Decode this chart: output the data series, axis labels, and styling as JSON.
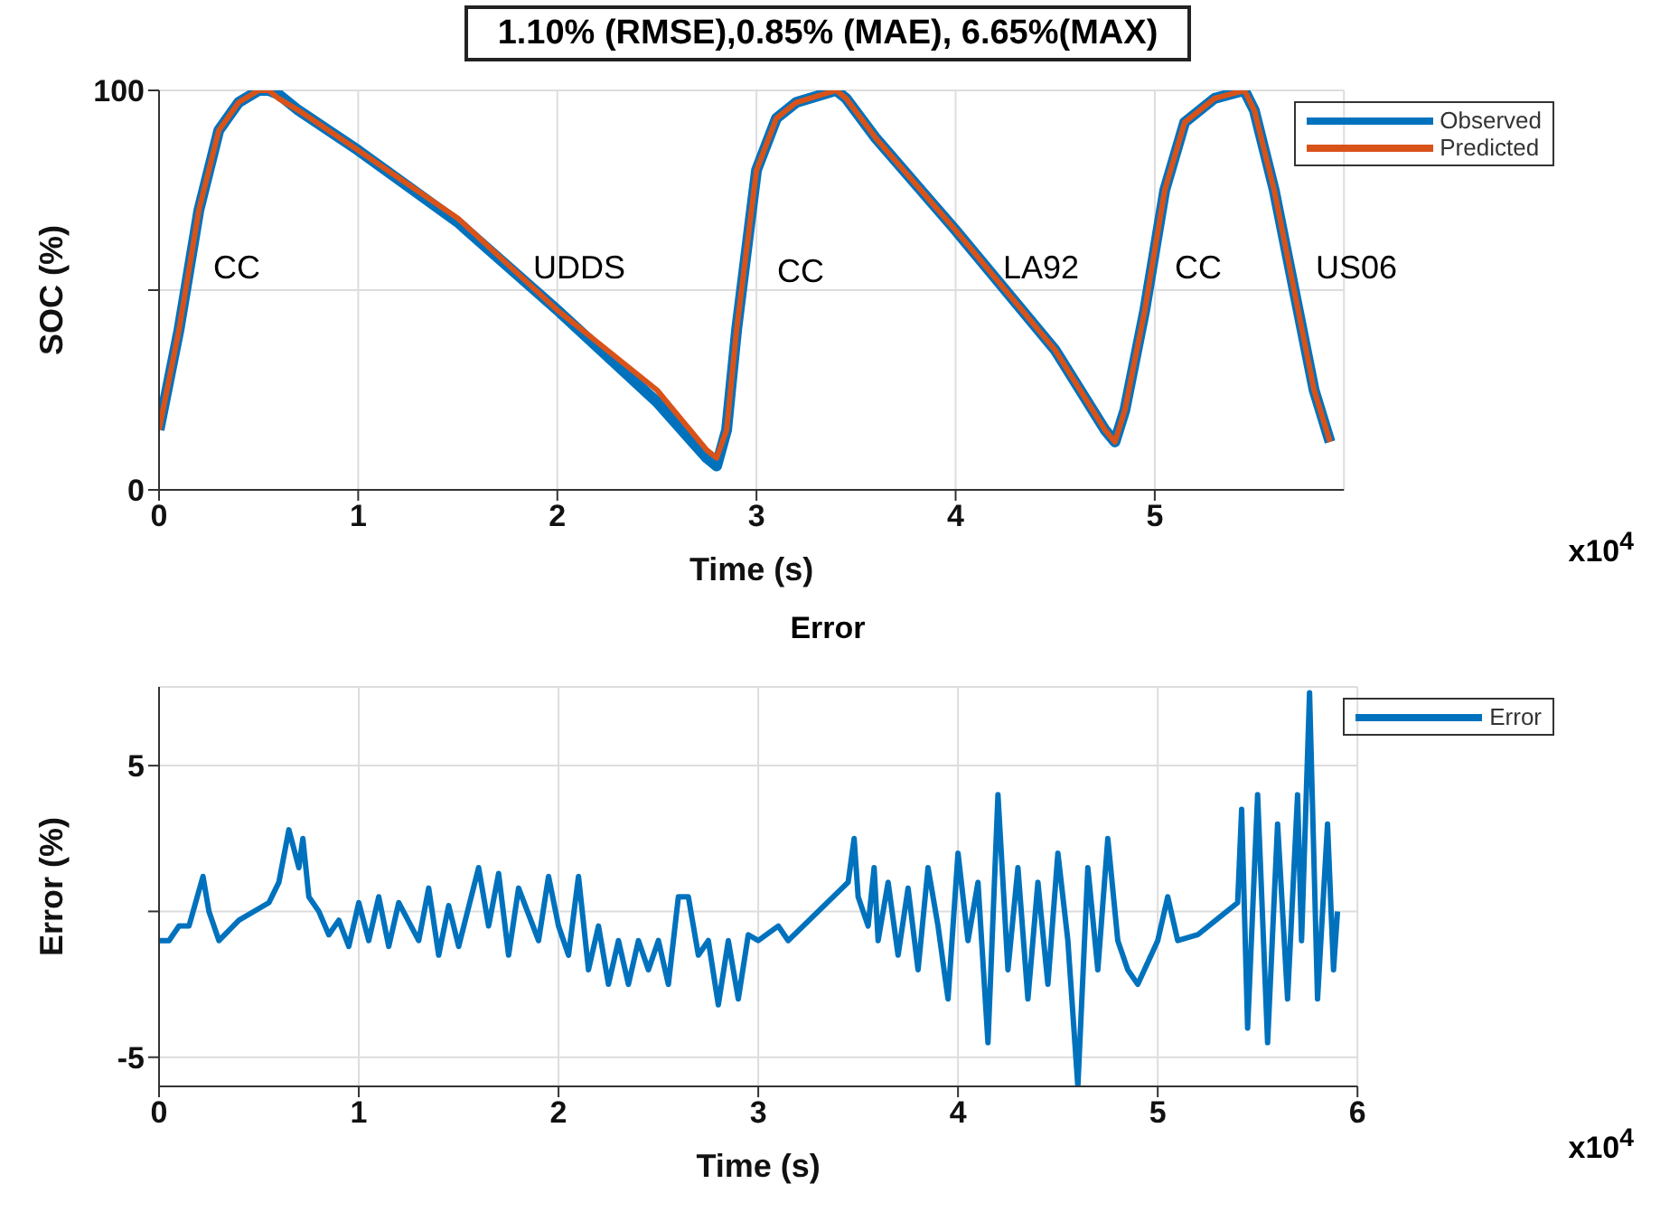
{
  "chart_data": [
    {
      "type": "line",
      "title": "1.10% (RMSE),0.85% (MAE), 6.65%(MAX)",
      "xlabel": "Time (s)",
      "ylabel": "SOC (%)",
      "xlim": [
        0,
        5.95
      ],
      "xticks": [
        0,
        1,
        2,
        3,
        4,
        5
      ],
      "ylim": [
        0,
        100
      ],
      "yticks": [
        0,
        {
          "value": 50,
          "label": null
        },
        100
      ],
      "grid": true,
      "legend": "top right",
      "line_style": "solid",
      "marker": "none",
      "annotations": [
        "CC",
        "UDDS",
        "CC",
        "LA92",
        "CC",
        "US06",
        "x10$^{4}$"
      ],
      "series": [
        {
          "name": "Observed",
          "color": "#0072bd",
          "x": [
            0,
            0.1,
            0.2,
            0.3,
            0.4,
            0.5,
            0.55,
            0.6,
            0.7,
            1.0,
            1.5,
            2.0,
            2.5,
            2.75,
            2.8,
            2.85,
            2.9,
            3.0,
            3.1,
            3.2,
            3.4,
            3.45,
            3.6,
            4.0,
            4.5,
            4.75,
            4.8,
            4.85,
            4.95,
            5.05,
            5.15,
            5.3,
            5.45,
            5.5,
            5.6,
            5.7,
            5.8,
            5.88
          ],
          "values": [
            15,
            40,
            70,
            90,
            97,
            100,
            100,
            99,
            95,
            85,
            67,
            45,
            22,
            8,
            6,
            15,
            40,
            80,
            93,
            97,
            100,
            98,
            88,
            65,
            35,
            15,
            12,
            20,
            45,
            75,
            92,
            98,
            100,
            95,
            75,
            50,
            25,
            12
          ]
        },
        {
          "name": "Predicted",
          "color": "#d95319",
          "x": [
            0,
            0.1,
            0.2,
            0.3,
            0.4,
            0.5,
            0.55,
            0.6,
            0.7,
            1.0,
            1.5,
            2.0,
            2.5,
            2.75,
            2.8,
            2.85,
            2.9,
            3.0,
            3.1,
            3.2,
            3.4,
            3.45,
            3.6,
            4.0,
            4.5,
            4.75,
            4.8,
            4.85,
            4.95,
            5.05,
            5.15,
            5.3,
            5.45,
            5.5,
            5.6,
            5.7,
            5.8,
            5.88
          ],
          "values": [
            15,
            40,
            70,
            90,
            97,
            100,
            100,
            98,
            95,
            85,
            68,
            45,
            25,
            10,
            8,
            15,
            40,
            80,
            93,
            97,
            100,
            98,
            88,
            65,
            35,
            15,
            12,
            20,
            45,
            75,
            92,
            98,
            100,
            95,
            75,
            50,
            25,
            12
          ]
        }
      ]
    },
    {
      "type": "line",
      "title": "Error",
      "xlabel": "Time (s)",
      "ylabel": "Error (%)",
      "xlim": [
        0,
        6
      ],
      "xticks": [
        0,
        1,
        2,
        3,
        4,
        5,
        6
      ],
      "ylim": [
        -6,
        7.7
      ],
      "yticks": [
        -5,
        {
          "value": 0,
          "label": null
        },
        5
      ],
      "grid": true,
      "legend": "top right",
      "line_style": "solid",
      "marker": "none",
      "annotations": [
        "x10$^{4}$"
      ],
      "series": [
        {
          "name": "Error",
          "color": "#0072bd",
          "x": [
            0,
            0.05,
            0.1,
            0.15,
            0.22,
            0.25,
            0.3,
            0.4,
            0.55,
            0.6,
            0.65,
            0.7,
            0.72,
            0.75,
            0.8,
            0.85,
            0.9,
            0.95,
            1.0,
            1.05,
            1.1,
            1.15,
            1.2,
            1.3,
            1.35,
            1.4,
            1.45,
            1.5,
            1.6,
            1.65,
            1.7,
            1.75,
            1.8,
            1.9,
            1.95,
            2.0,
            2.05,
            2.1,
            2.15,
            2.2,
            2.25,
            2.3,
            2.35,
            2.4,
            2.45,
            2.5,
            2.55,
            2.6,
            2.65,
            2.7,
            2.75,
            2.8,
            2.85,
            2.9,
            2.95,
            3.0,
            3.1,
            3.15,
            3.3,
            3.45,
            3.48,
            3.5,
            3.55,
            3.58,
            3.6,
            3.65,
            3.7,
            3.75,
            3.8,
            3.85,
            3.9,
            3.95,
            4.0,
            4.05,
            4.1,
            4.15,
            4.2,
            4.25,
            4.3,
            4.35,
            4.4,
            4.45,
            4.5,
            4.55,
            4.6,
            4.65,
            4.7,
            4.75,
            4.8,
            4.85,
            4.9,
            5.0,
            5.05,
            5.1,
            5.2,
            5.4,
            5.42,
            5.45,
            5.5,
            5.55,
            5.6,
            5.65,
            5.7,
            5.72,
            5.76,
            5.8,
            5.85,
            5.88,
            5.9
          ],
          "values": [
            -1,
            -1,
            -0.5,
            -0.5,
            1.2,
            0,
            -1,
            -0.3,
            0.3,
            1,
            2.8,
            1.5,
            2.5,
            0.5,
            0,
            -0.8,
            -0.3,
            -1.2,
            0.3,
            -1,
            0.5,
            -1.2,
            0.3,
            -1,
            0.8,
            -1.5,
            0.2,
            -1.2,
            1.5,
            -0.5,
            1.3,
            -1.5,
            0.8,
            -1,
            1.2,
            -0.5,
            -1.5,
            1.2,
            -2,
            -0.5,
            -2.5,
            -1,
            -2.5,
            -1,
            -2,
            -1,
            -2.5,
            0.5,
            0.5,
            -1.5,
            -1,
            -3.2,
            -1,
            -3,
            -0.8,
            -1,
            -0.5,
            -1,
            0,
            1,
            2.5,
            0.5,
            -0.5,
            1.5,
            -1,
            1,
            -1.5,
            0.8,
            -2,
            1.5,
            -0.5,
            -3,
            2,
            -1,
            1,
            -4.5,
            4,
            -2,
            1.5,
            -3,
            1,
            -2.5,
            2,
            -1,
            -6,
            1.5,
            -2,
            2.5,
            -1,
            -2,
            -2.5,
            -1,
            0.5,
            -1,
            -0.8,
            0.3,
            3.5,
            -4,
            4,
            -4.5,
            3,
            -3,
            4,
            -1,
            7.5,
            -3,
            3,
            -2,
            0
          ]
        }
      ]
    }
  ]
}
